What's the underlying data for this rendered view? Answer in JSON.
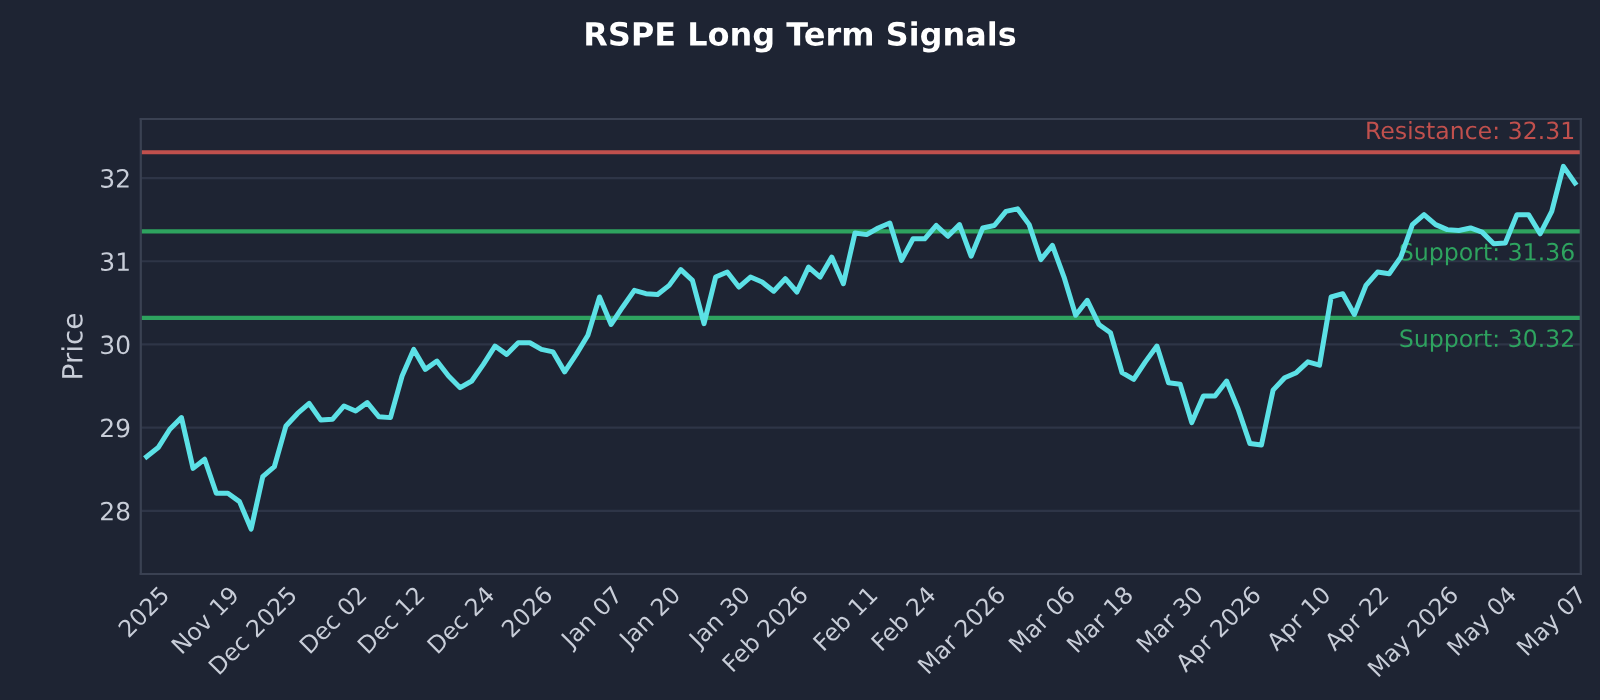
{
  "chart_data": {
    "type": "line",
    "title": "RSPE Long Term Signals",
    "ylabel": "Price",
    "categories": [
      null,
      "2025",
      null,
      null,
      null,
      null,
      null,
      "Nov 19",
      null,
      null,
      null,
      null,
      "Dec 2025",
      null,
      null,
      null,
      null,
      null,
      "Dec 02",
      null,
      null,
      null,
      null,
      "Dec 12",
      null,
      null,
      null,
      null,
      null,
      "Dec 24",
      null,
      null,
      null,
      null,
      "2026",
      null,
      null,
      null,
      null,
      null,
      "Jan 07",
      null,
      null,
      null,
      null,
      "Jan 20",
      null,
      null,
      null,
      null,
      null,
      "Jan 30",
      null,
      null,
      null,
      null,
      "Feb 2026",
      null,
      null,
      null,
      null,
      null,
      "Feb 11",
      null,
      null,
      null,
      null,
      "Feb 24",
      null,
      null,
      null,
      null,
      null,
      "Mar 2026",
      null,
      null,
      null,
      null,
      null,
      "Mar 06",
      null,
      null,
      null,
      null,
      "Mar 18",
      null,
      null,
      null,
      null,
      null,
      "Mar 30",
      null,
      null,
      null,
      null,
      "Apr 2026",
      null,
      null,
      null,
      null,
      null,
      "Apr 10",
      null,
      null,
      null,
      null,
      "Apr 22",
      null,
      null,
      null,
      null,
      null,
      "May 2026",
      null,
      null,
      null,
      null,
      "May 04",
      null,
      null,
      null,
      null,
      null,
      "May 07"
    ],
    "series": [
      {
        "color": "#5ce1e6",
        "values": [
          28.65,
          28.76,
          28.98,
          29.12,
          28.51,
          28.62,
          28.21,
          28.21,
          28.11,
          27.78,
          28.41,
          28.53,
          29.02,
          29.17,
          29.29,
          29.09,
          29.1,
          29.26,
          29.2,
          29.3,
          29.13,
          29.12,
          29.62,
          29.94,
          29.7,
          29.8,
          29.62,
          29.48,
          29.56,
          29.76,
          29.98,
          29.88,
          30.02,
          30.02,
          29.94,
          29.91,
          29.67,
          29.88,
          30.11,
          30.57,
          30.24,
          30.45,
          30.65,
          30.61,
          30.6,
          30.71,
          30.9,
          30.77,
          30.25,
          30.81,
          30.87,
          30.69,
          30.81,
          30.75,
          30.64,
          30.79,
          30.63,
          30.93,
          30.81,
          31.05,
          30.73,
          31.34,
          31.32,
          31.4,
          31.46,
          31.01,
          31.27,
          31.27,
          31.43,
          31.3,
          31.44,
          31.06,
          31.4,
          31.43,
          31.6,
          31.63,
          31.44,
          31.02,
          31.19,
          30.81,
          30.35,
          30.53,
          30.24,
          30.14,
          29.66,
          29.58,
          29.79,
          29.98,
          29.54,
          29.52,
          29.06,
          29.38,
          29.38,
          29.56,
          29.22,
          28.81,
          28.79,
          29.45,
          29.6,
          29.66,
          29.79,
          29.75,
          30.57,
          30.61,
          30.36,
          30.71,
          30.87,
          30.85,
          31.05,
          31.44,
          31.56,
          31.44,
          31.38,
          31.37,
          31.4,
          31.35,
          31.21,
          31.22,
          31.56,
          31.56,
          31.33,
          31.6,
          32.14,
          31.94
        ]
      }
    ],
    "ylim": [
      27.24,
      32.71
    ],
    "yticks": [
      28,
      29,
      30,
      31,
      32
    ],
    "grid": "y",
    "ref_lines": [
      {
        "axis": "y",
        "value": 32.31,
        "label": "Resistance: 32.31",
        "color": "#c0504d"
      },
      {
        "axis": "y",
        "value": 31.36,
        "label": "Support: 31.36",
        "color": "#2ea35f"
      },
      {
        "axis": "y",
        "value": 30.32,
        "label": "Support: 30.32",
        "color": "#2ea35f"
      }
    ]
  }
}
